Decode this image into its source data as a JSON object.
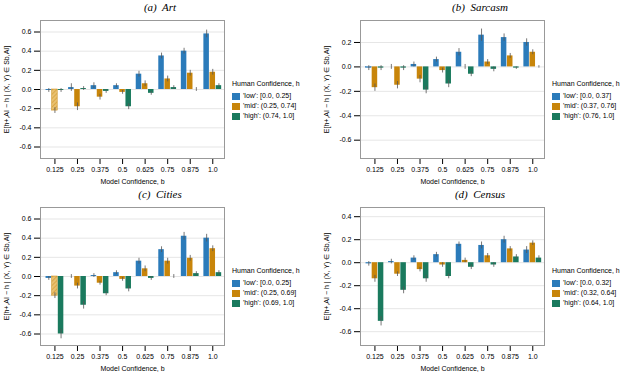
{
  "chart_data": [
    {
      "type": "bar",
      "title": "(a)  Art",
      "xlabel": "Model Confidence, b",
      "ylabel": "E[h+,AI − h | (X, Y) ∈ Sb,AI]",
      "legend_title": "Human Confidence, h",
      "legend": "right",
      "grid": true,
      "x": [
        0.125,
        0.25,
        0.375,
        0.5,
        0.625,
        0.75,
        0.875,
        1.0
      ],
      "xlim": [
        0.045,
        1.065
      ],
      "xticks": [
        0.125,
        0.25,
        0.375,
        0.5,
        0.625,
        0.75,
        0.875,
        {
          "value": 1.0,
          "label": "1.0"
        }
      ],
      "ylim": [
        -0.72,
        0.72
      ],
      "yticks": [
        -0.6,
        -0.4,
        -0.2,
        {
          "value": 0.0,
          "label": "0.0"
        },
        0.2,
        0.4,
        0.6
      ],
      "series": [
        {
          "name": "'low': [0.0, 0.25]",
          "color": "#2b7bba",
          "hatch_color": "#9bbedd",
          "values": [
            -0.01,
            0.02,
            0.04,
            0.04,
            0.16,
            0.35,
            0.4,
            0.58
          ],
          "errors": [
            0.02,
            0.04,
            0.03,
            0.02,
            0.03,
            0.03,
            0.03,
            0.04
          ],
          "missing": []
        },
        {
          "name": "'mid': (0.25, 0.74]",
          "color": "#c8850a",
          "hatch_color": "#e8c070",
          "values": [
            -0.22,
            -0.18,
            -0.08,
            -0.03,
            0.06,
            0.11,
            0.17,
            0.18
          ],
          "errors": [
            0.03,
            0.04,
            0.03,
            0.02,
            0.03,
            0.03,
            0.03,
            0.03
          ],
          "missing": [
            0
          ]
        },
        {
          "name": "'high': (0.74, 1.0]",
          "color": "#1a7a5e",
          "hatch_color": "#5ab09a",
          "values": [
            -0.01,
            0.01,
            -0.02,
            -0.18,
            -0.04,
            0.02,
            0.0,
            0.04
          ],
          "errors": [
            0.02,
            0.02,
            0.02,
            0.03,
            0.02,
            0.02,
            0.02,
            0.02
          ],
          "missing": []
        }
      ]
    },
    {
      "type": "bar",
      "title": "(b)  Sarcasm",
      "xlabel": "Model Confidence, b",
      "ylabel": "E[h+,AI − h | (X, Y) ∈ Sb,AI]",
      "legend_title": "Human Confidence, h",
      "legend": "right",
      "grid": true,
      "x": [
        0.125,
        0.25,
        0.375,
        0.5,
        0.625,
        0.75,
        0.875,
        1.0
      ],
      "xlim": [
        0.045,
        1.065
      ],
      "xticks": [
        0.125,
        0.25,
        0.375,
        0.5,
        0.625,
        0.75,
        0.875,
        {
          "value": 1.0,
          "label": "1.0"
        }
      ],
      "ylim": [
        -0.75,
        0.38
      ],
      "yticks": [
        -0.6,
        -0.4,
        -0.2,
        {
          "value": 0.0,
          "label": "0.0"
        },
        0.2
      ],
      "series": [
        {
          "name": "'low': [0.0, 0.37]",
          "color": "#2b7bba",
          "hatch_color": "#9bbedd",
          "values": [
            -0.01,
            0.0,
            0.02,
            0.06,
            0.12,
            0.26,
            0.24,
            0.2
          ],
          "errors": [
            0.02,
            0.02,
            0.02,
            0.02,
            0.03,
            0.05,
            0.03,
            0.03
          ],
          "missing": [
            0
          ]
        },
        {
          "name": "'mid': (0.37, 0.76]",
          "color": "#c8850a",
          "hatch_color": "#e8c070",
          "values": [
            -0.17,
            -0.15,
            -0.1,
            -0.03,
            0.0,
            0.04,
            0.09,
            0.12
          ],
          "errors": [
            0.03,
            0.03,
            0.03,
            0.02,
            0.02,
            0.02,
            0.02,
            0.02
          ],
          "missing": []
        },
        {
          "name": "'high': (0.76, 1.0]",
          "color": "#1a7a5e",
          "hatch_color": "#5ab09a",
          "values": [
            -0.01,
            -0.01,
            -0.19,
            -0.14,
            -0.06,
            -0.02,
            -0.01,
            0.0
          ],
          "errors": [
            0.02,
            0.02,
            0.03,
            0.03,
            0.02,
            0.02,
            0.01,
            0.01
          ],
          "missing": []
        }
      ]
    },
    {
      "type": "bar",
      "title": "(c)  Cities",
      "xlabel": "Model Confidence, b",
      "ylabel": "E[h+,AI − h | (X, Y) ∈ Sb,AI]",
      "legend_title": "Human Confidence, h",
      "legend": "right",
      "grid": true,
      "x": [
        0.125,
        0.25,
        0.375,
        0.5,
        0.625,
        0.75,
        0.875,
        1.0
      ],
      "xlim": [
        0.045,
        1.065
      ],
      "xticks": [
        0.125,
        0.25,
        0.375,
        0.5,
        0.625,
        0.75,
        0.875,
        {
          "value": 1.0,
          "label": "1.0"
        }
      ],
      "ylim": [
        -0.72,
        0.72
      ],
      "yticks": [
        -0.6,
        -0.4,
        -0.2,
        {
          "value": 0.0,
          "label": "0.0"
        },
        0.2,
        0.4,
        0.6
      ],
      "series": [
        {
          "name": "'low': [0.0, 0.25]",
          "color": "#2b7bba",
          "hatch_color": "#9bbedd",
          "values": [
            -0.02,
            0.0,
            0.01,
            0.04,
            0.16,
            0.28,
            0.42,
            0.4
          ],
          "errors": [
            0.02,
            0.02,
            0.02,
            0.02,
            0.03,
            0.03,
            0.04,
            0.04
          ],
          "missing": []
        },
        {
          "name": "'mid': (0.25, 0.69]",
          "color": "#c8850a",
          "hatch_color": "#e8c070",
          "values": [
            -0.2,
            -0.1,
            -0.07,
            -0.03,
            0.08,
            0.16,
            0.19,
            0.29
          ],
          "errors": [
            0.03,
            0.03,
            0.02,
            0.02,
            0.03,
            0.03,
            0.03,
            0.03
          ],
          "missing": [
            0
          ]
        },
        {
          "name": "'high': (0.69, 1.0]",
          "color": "#1a7a5e",
          "hatch_color": "#5ab09a",
          "values": [
            -0.6,
            -0.3,
            -0.18,
            -0.13,
            -0.02,
            0.0,
            0.03,
            0.04
          ],
          "errors": [
            0.05,
            0.04,
            0.02,
            0.03,
            0.02,
            0.02,
            0.02,
            0.02
          ],
          "missing": []
        }
      ]
    },
    {
      "type": "bar",
      "title": "(d)  Census",
      "xlabel": "Model Confidence, b",
      "ylabel": "E[h+,AI − h | (X, Y) ∈ Sb,AI]",
      "legend_title": "Human Confidence, h",
      "legend": "right",
      "grid": true,
      "x": [
        0.125,
        0.25,
        0.375,
        0.5,
        0.625,
        0.75,
        0.875,
        1.0
      ],
      "xlim": [
        0.045,
        1.065
      ],
      "xticks": [
        0.125,
        0.25,
        0.375,
        0.5,
        0.625,
        0.75,
        0.875,
        {
          "value": 1.0,
          "label": "1.0"
        }
      ],
      "ylim": [
        -0.72,
        0.48
      ],
      "yticks": [
        -0.6,
        -0.4,
        -0.2,
        {
          "value": 0.0,
          "label": "0.0"
        },
        0.2,
        0.4
      ],
      "series": [
        {
          "name": "'low': [0.0, 0.32]",
          "color": "#2b7bba",
          "hatch_color": "#9bbedd",
          "values": [
            -0.01,
            0.01,
            0.04,
            0.07,
            0.16,
            0.15,
            0.2,
            0.11
          ],
          "errors": [
            0.02,
            0.02,
            0.02,
            0.02,
            0.02,
            0.03,
            0.03,
            0.03
          ],
          "missing": []
        },
        {
          "name": "'mid': (0.32, 0.64]",
          "color": "#c8850a",
          "hatch_color": "#e8c070",
          "values": [
            -0.14,
            -0.1,
            -0.06,
            -0.02,
            0.02,
            0.06,
            0.12,
            0.17
          ],
          "errors": [
            0.03,
            0.02,
            0.02,
            0.02,
            0.02,
            0.02,
            0.02,
            0.02
          ],
          "missing": []
        },
        {
          "name": "'high': (0.64, 1.0]",
          "color": "#1a7a5e",
          "hatch_color": "#5ab09a",
          "values": [
            -0.51,
            -0.24,
            -0.14,
            -0.12,
            -0.04,
            -0.02,
            0.05,
            0.04
          ],
          "errors": [
            0.04,
            0.03,
            0.03,
            0.02,
            0.02,
            0.02,
            0.02,
            0.02
          ],
          "missing": []
        }
      ]
    }
  ]
}
